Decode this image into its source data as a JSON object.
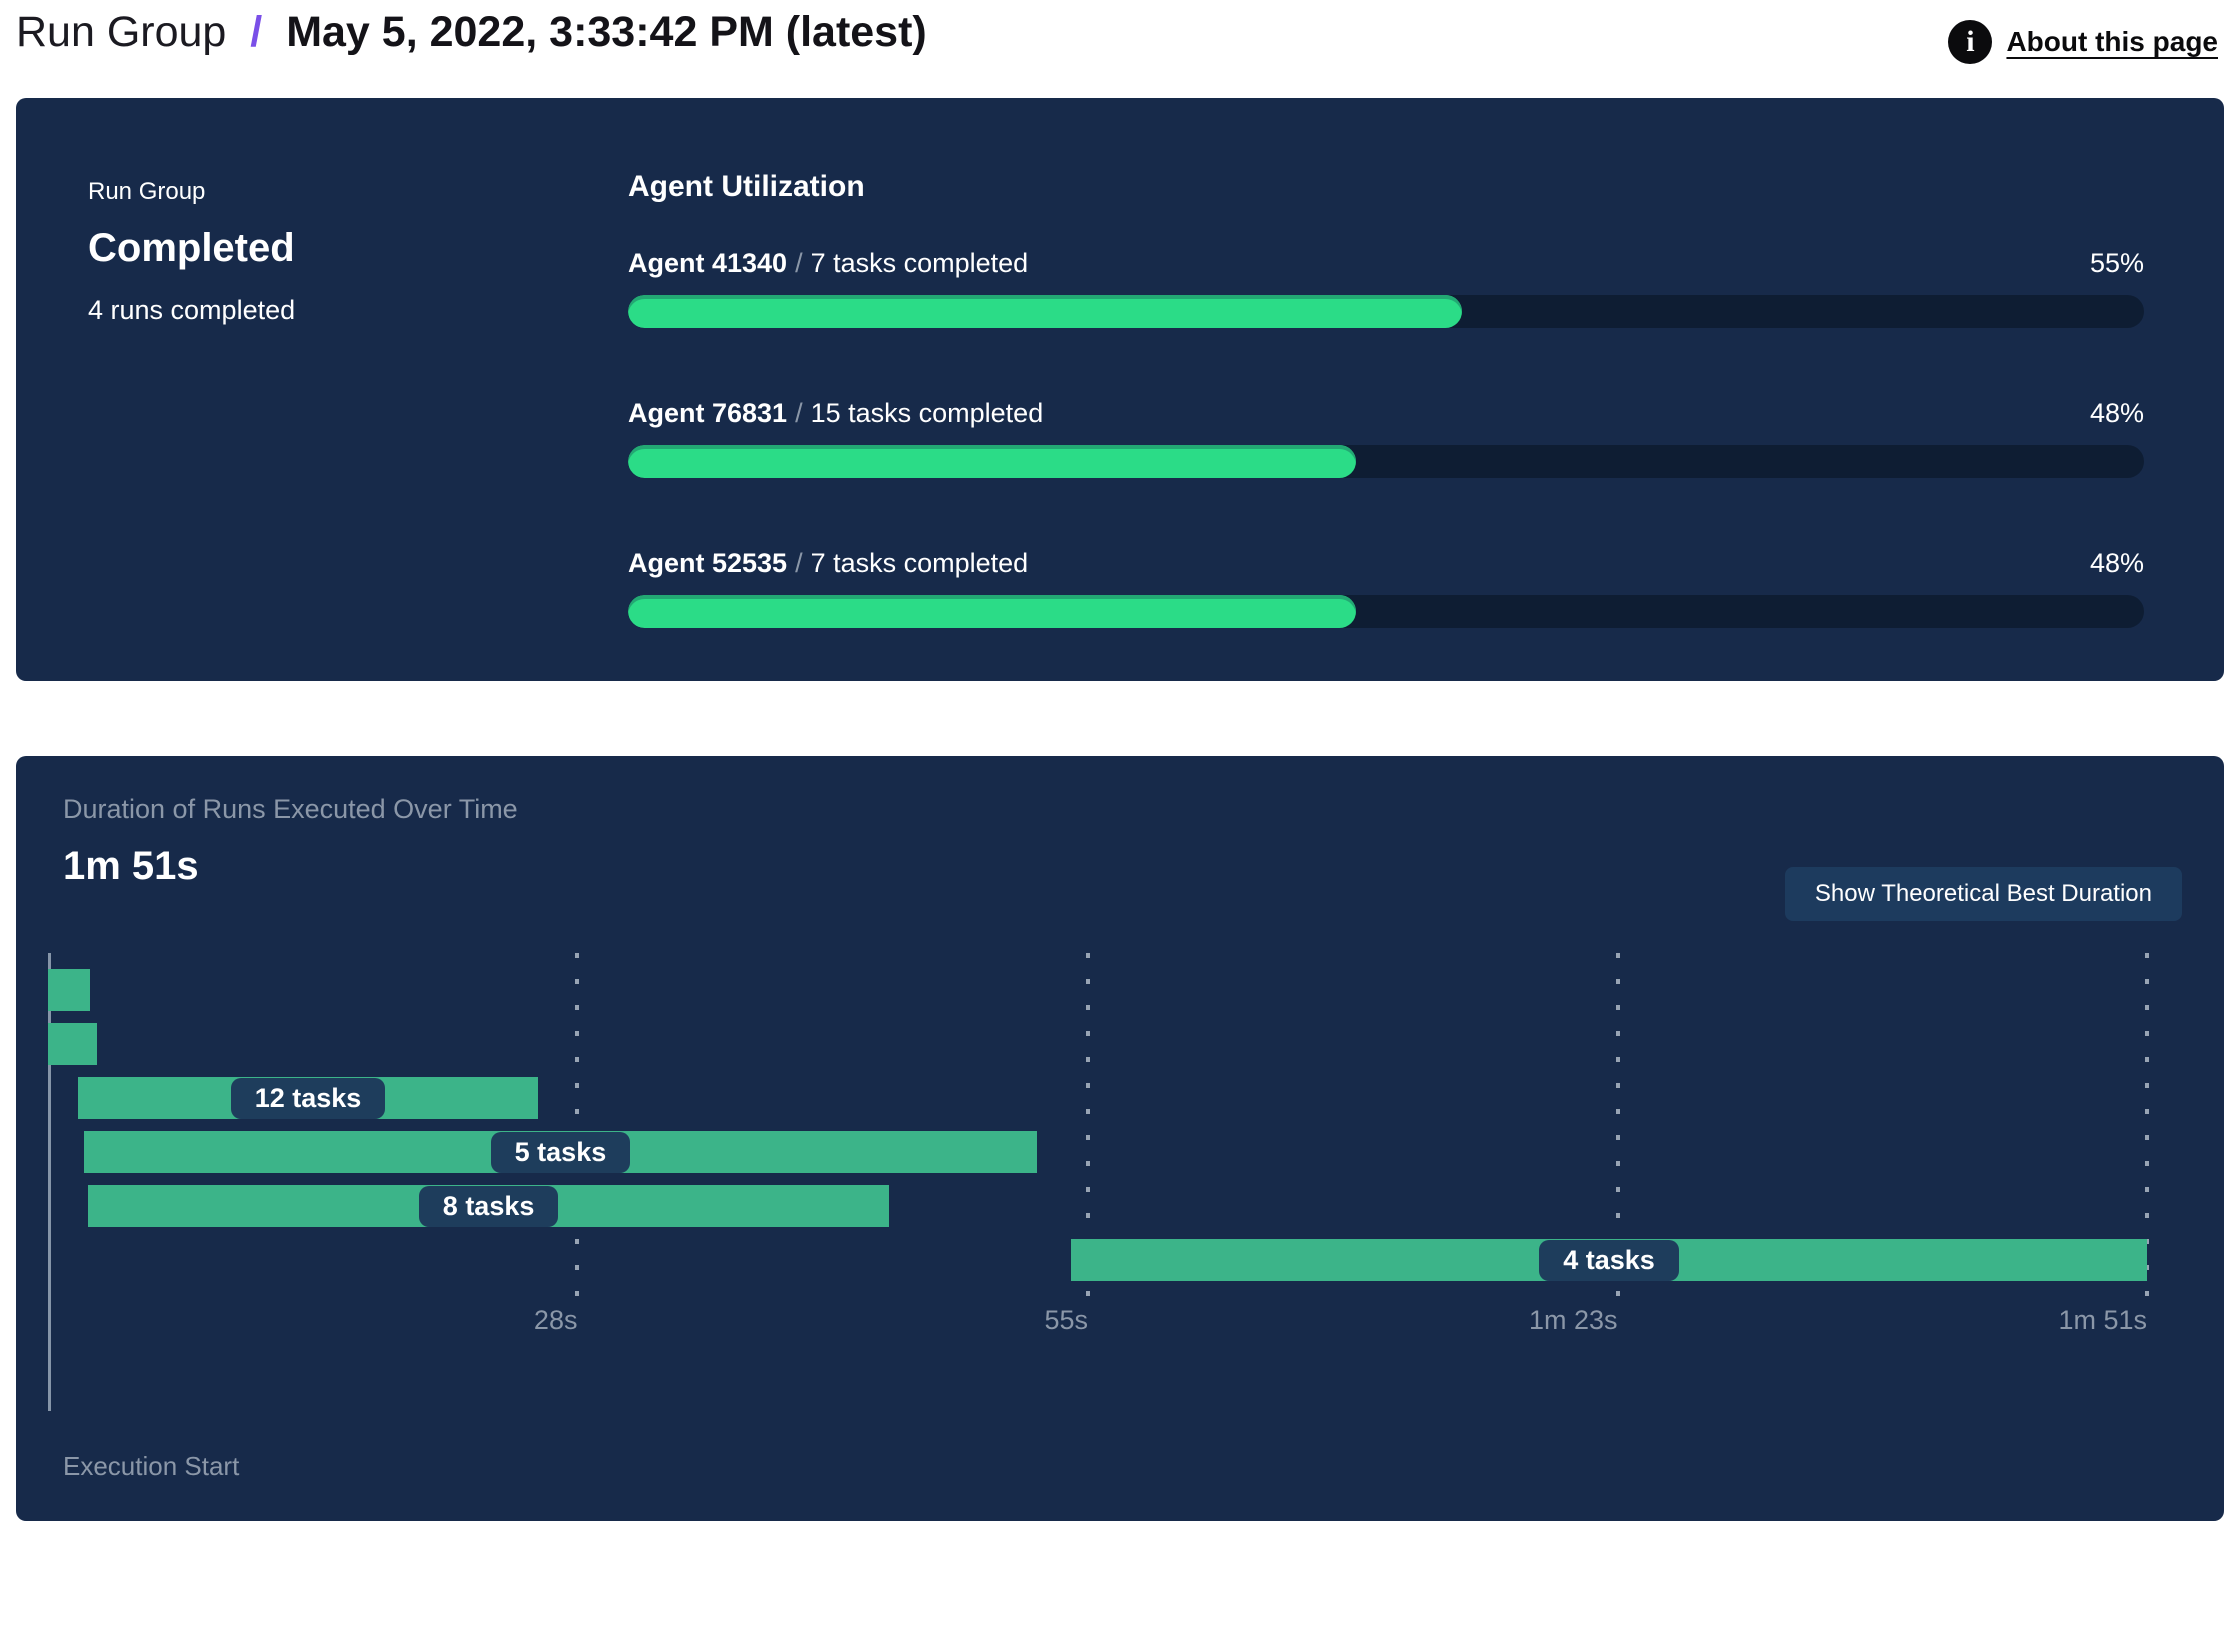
{
  "header": {
    "breadcrumb_root": "Run Group",
    "separator": "/",
    "title": "May 5, 2022, 3:33:42 PM (latest)",
    "about_link": "About this page",
    "info_icon": "info-icon"
  },
  "colors": {
    "panel_background": "#172a4a",
    "progress_fill_green": "#2bdc87",
    "progress_track": "#0e1d33",
    "gantt_bar_green": "#3cb489",
    "badge_background": "#1e3d5c",
    "button_background": "#1d3b5e",
    "muted_text": "#8b97a8",
    "breadcrumb_separator_purple": "#7a4fe8"
  },
  "summary_panel": {
    "eyebrow": "Run Group",
    "status": "Completed",
    "subtitle": "4 runs completed",
    "utilization": {
      "heading": "Agent Utilization",
      "separator": "/",
      "agents": [
        {
          "name": "Agent 41340",
          "sep": "/",
          "tasks": "7 tasks completed",
          "percent": 55,
          "percent_label": "55%"
        },
        {
          "name": "Agent 76831",
          "sep": "/",
          "tasks": "15 tasks completed",
          "percent": 48,
          "percent_label": "48%"
        },
        {
          "name": "Agent 52535",
          "sep": "/",
          "tasks": "7 tasks completed",
          "percent": 48,
          "percent_label": "48%"
        }
      ]
    }
  },
  "duration_panel": {
    "title": "Duration of Runs Executed Over Time",
    "total_duration": "1m 51s",
    "button_label": "Show Theoretical Best Duration",
    "execution_start_label": "Execution Start"
  },
  "chart_data": [
    {
      "type": "bar",
      "title": "Agent Utilization",
      "categories": [
        "Agent 41340",
        "Agent 76831",
        "Agent 52535"
      ],
      "values": [
        55,
        48,
        48
      ],
      "value_labels": [
        "55%",
        "48%",
        "48%"
      ],
      "annotations": [
        "7 tasks completed",
        "15 tasks completed",
        "7 tasks completed"
      ],
      "xlabel": "",
      "ylabel": "",
      "xlim": [
        0,
        100
      ],
      "unit": "%"
    },
    {
      "type": "gantt",
      "title": "Duration of Runs Executed Over Time",
      "total_duration_label": "1m 51s",
      "time_axis": {
        "start_s": 0,
        "end_s": 111,
        "tick_values_s": [
          28,
          55,
          83,
          111
        ],
        "tick_labels": [
          "28s",
          "55s",
          "1m 23s",
          "1m 51s"
        ],
        "origin_label": "Execution Start",
        "gridlines": "dashed"
      },
      "bars": [
        {
          "row": 1,
          "start_s": 0.0,
          "end_s": 2.2,
          "label": ""
        },
        {
          "row": 2,
          "start_s": 0.0,
          "end_s": 2.6,
          "label": ""
        },
        {
          "row": 3,
          "start_s": 1.6,
          "end_s": 25.9,
          "label": "12 tasks"
        },
        {
          "row": 4,
          "start_s": 1.9,
          "end_s": 52.3,
          "label": "5 tasks"
        },
        {
          "row": 5,
          "start_s": 2.1,
          "end_s": 44.5,
          "label": "8 tasks"
        },
        {
          "row": 6,
          "start_s": 54.1,
          "end_s": 111.0,
          "label": "4 tasks"
        }
      ]
    }
  ]
}
